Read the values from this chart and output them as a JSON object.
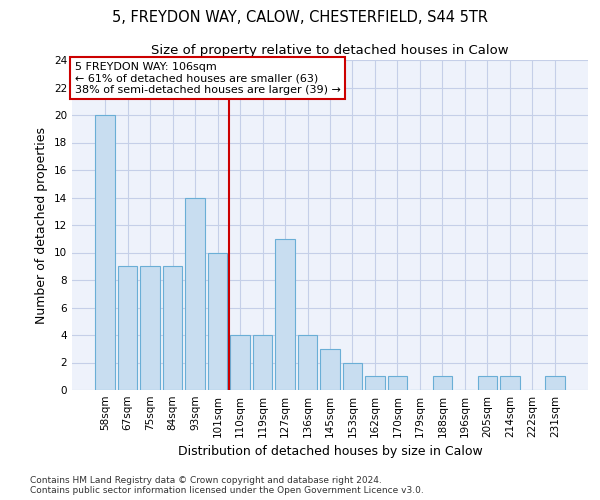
{
  "title": "5, FREYDON WAY, CALOW, CHESTERFIELD, S44 5TR",
  "subtitle": "Size of property relative to detached houses in Calow",
  "xlabel": "Distribution of detached houses by size in Calow",
  "ylabel": "Number of detached properties",
  "bar_labels": [
    "58sqm",
    "67sqm",
    "75sqm",
    "84sqm",
    "93sqm",
    "101sqm",
    "110sqm",
    "119sqm",
    "127sqm",
    "136sqm",
    "145sqm",
    "153sqm",
    "162sqm",
    "170sqm",
    "179sqm",
    "188sqm",
    "196sqm",
    "205sqm",
    "214sqm",
    "222sqm",
    "231sqm"
  ],
  "bar_values": [
    20,
    9,
    9,
    9,
    14,
    10,
    4,
    4,
    11,
    4,
    3,
    2,
    1,
    1,
    0,
    1,
    0,
    1,
    1,
    0,
    1
  ],
  "bar_color": "#c8ddf0",
  "bar_edgecolor": "#6aaed6",
  "reference_line_x": 5.5,
  "annotation_line1": "5 FREYDON WAY: 106sqm",
  "annotation_line2": "← 61% of detached houses are smaller (63)",
  "annotation_line3": "38% of semi-detached houses are larger (39) →",
  "annotation_box_color": "#ffffff",
  "annotation_box_edgecolor": "#cc0000",
  "ylim": [
    0,
    24
  ],
  "yticks": [
    0,
    2,
    4,
    6,
    8,
    10,
    12,
    14,
    16,
    18,
    20,
    22,
    24
  ],
  "footer_line1": "Contains HM Land Registry data © Crown copyright and database right 2024.",
  "footer_line2": "Contains public sector information licensed under the Open Government Licence v3.0.",
  "background_color": "#eef2fb",
  "grid_color": "#c5cfe8",
  "title_fontsize": 10.5,
  "subtitle_fontsize": 9.5,
  "axis_label_fontsize": 9,
  "tick_fontsize": 7.5,
  "annotation_fontsize": 8,
  "footer_fontsize": 6.5
}
